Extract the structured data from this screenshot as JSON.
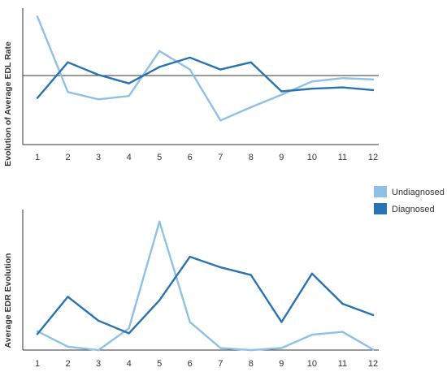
{
  "chart_data": [
    {
      "type": "line",
      "ylabel": "Evolution of Average EDL Rate",
      "xlabel": "",
      "x": [
        "1",
        "2",
        "3",
        "4",
        "5",
        "6",
        "7",
        "8",
        "9",
        "10",
        "11",
        "12"
      ],
      "ylim": [
        -4.3,
        4.6
      ],
      "baseline": 0,
      "grid": false,
      "series": [
        {
          "name": "Undiagnosed",
          "color": "#8fc0e6",
          "values": [
            4.45,
            -1.25,
            -1.8,
            -1.55,
            1.85,
            0.45,
            -3.4,
            -2.4,
            -1.45,
            -0.45,
            -0.2,
            -0.3
          ]
        },
        {
          "name": "Diagnosed",
          "color": "#2a73b1",
          "values": [
            -1.7,
            1.0,
            0.05,
            -0.6,
            0.65,
            1.35,
            0.45,
            1.0,
            -1.2,
            -1.0,
            -0.9,
            -1.1
          ]
        }
      ]
    },
    {
      "type": "line",
      "ylabel": "Average EDR Evolution",
      "xlabel": "",
      "x": [
        "1",
        "2",
        "3",
        "4",
        "5",
        "6",
        "7",
        "8",
        "9",
        "10",
        "11",
        "12"
      ],
      "ylim": [
        0,
        10
      ],
      "grid": false,
      "series": [
        {
          "name": "Undiagnosed",
          "color": "#8fc0e6",
          "values": [
            1.4,
            0.3,
            0.05,
            1.6,
            9.2,
            2.05,
            0.2,
            0.05,
            0.2,
            1.15,
            1.35,
            0.1
          ]
        },
        {
          "name": "Diagnosed",
          "color": "#2a73b1",
          "values": [
            1.2,
            3.85,
            2.15,
            1.25,
            3.6,
            6.7,
            5.95,
            5.4,
            2.05,
            5.5,
            3.35,
            2.55
          ]
        }
      ]
    }
  ],
  "legend": {
    "position": "right",
    "items": [
      {
        "label": "Undiagnosed",
        "color": "#8fc0e6"
      },
      {
        "label": "Diagnosed",
        "color": "#2a73b1"
      }
    ]
  }
}
